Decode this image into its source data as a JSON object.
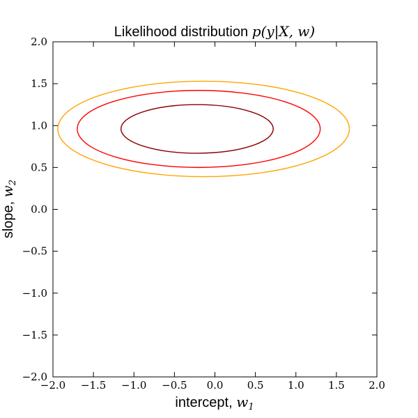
{
  "chart_data": {
    "type": "contour",
    "title": {
      "text": "Likelihood distribution ",
      "math": "p(y|X, w)"
    },
    "xlabel": {
      "text": "intercept, ",
      "math_base": "w",
      "math_sub": "1"
    },
    "ylabel": {
      "text": "slope, ",
      "math_base": "w",
      "math_sub": "2"
    },
    "xlim": [
      -2.0,
      2.0
    ],
    "ylim": [
      -2.0,
      2.0
    ],
    "x_ticks": [
      -2.0,
      -1.5,
      -1.0,
      -0.5,
      0.0,
      0.5,
      1.0,
      1.5,
      2.0
    ],
    "y_ticks": [
      -2.0,
      -1.5,
      -1.0,
      -0.5,
      0.0,
      0.5,
      1.0,
      1.5,
      2.0
    ],
    "x_tick_labels": [
      "−2.0",
      "−1.5",
      "−1.0",
      "−0.5",
      "0.0",
      "0.5",
      "1.0",
      "1.5",
      "2.0"
    ],
    "y_tick_labels": [
      "−2.0",
      "−1.5",
      "−1.0",
      "−0.5",
      "0.0",
      "0.5",
      "1.0",
      "1.5",
      "2.0"
    ],
    "grid": false,
    "contours": [
      {
        "level": "inner",
        "color": "#8b0000",
        "center": [
          -0.22,
          0.96
        ],
        "x_half_width": 0.94,
        "y_half_height": 0.29
      },
      {
        "level": "middle",
        "color": "#ff0000",
        "center": [
          -0.2,
          0.96
        ],
        "x_half_width": 1.5,
        "y_half_height": 0.46
      },
      {
        "level": "outer",
        "color": "#ffa500",
        "center": [
          -0.14,
          0.96
        ],
        "x_half_width": 1.8,
        "y_half_height": 0.57
      }
    ]
  }
}
